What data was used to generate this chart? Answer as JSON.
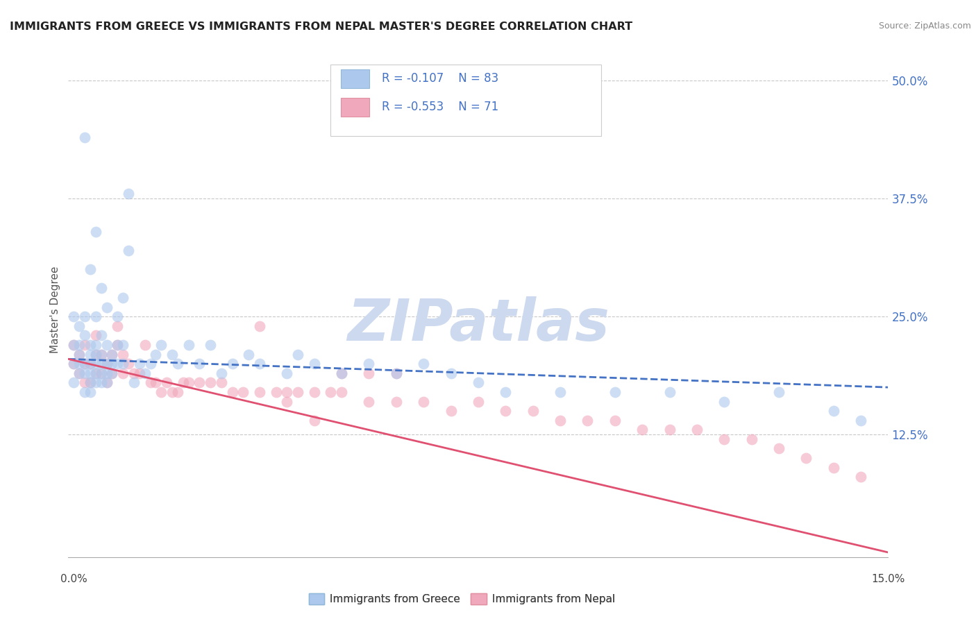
{
  "title": "IMMIGRANTS FROM GREECE VS IMMIGRANTS FROM NEPAL MASTER'S DEGREE CORRELATION CHART",
  "source_text": "Source: ZipAtlas.com",
  "xlim": [
    0.0,
    0.15
  ],
  "ylim": [
    -0.005,
    0.52
  ],
  "ylabel_ticks": [
    0.0,
    0.125,
    0.25,
    0.375,
    0.5
  ],
  "ylabel_labels": [
    "",
    "12.5%",
    "25.0%",
    "37.5%",
    "50.0%"
  ],
  "legend_R1": "R = -0.107",
  "legend_N1": "N = 83",
  "legend_R2": "R = -0.553",
  "legend_N2": "N = 71",
  "color_greece": "#adc8ed",
  "color_nepal": "#f0a8bc",
  "color_greece_line": "#4472c4",
  "color_nepal_line": "#e05070",
  "watermark": "ZIPatlas",
  "watermark_color": "#ccd9ee",
  "legend_text_color": "#4472c4",
  "greece_x": [
    0.001,
    0.001,
    0.001,
    0.001,
    0.002,
    0.002,
    0.002,
    0.002,
    0.002,
    0.003,
    0.003,
    0.003,
    0.003,
    0.003,
    0.004,
    0.004,
    0.004,
    0.004,
    0.004,
    0.004,
    0.005,
    0.005,
    0.005,
    0.005,
    0.005,
    0.005,
    0.006,
    0.006,
    0.006,
    0.006,
    0.006,
    0.007,
    0.007,
    0.007,
    0.007,
    0.008,
    0.008,
    0.008,
    0.009,
    0.009,
    0.009,
    0.01,
    0.01,
    0.011,
    0.011,
    0.012,
    0.013,
    0.014,
    0.015,
    0.016,
    0.017,
    0.019,
    0.02,
    0.022,
    0.024,
    0.026,
    0.028,
    0.03,
    0.033,
    0.035,
    0.04,
    0.042,
    0.045,
    0.05,
    0.055,
    0.06,
    0.065,
    0.07,
    0.075,
    0.08,
    0.09,
    0.1,
    0.11,
    0.12,
    0.13,
    0.14,
    0.145,
    0.003,
    0.004,
    0.005,
    0.006,
    0.007,
    0.01
  ],
  "greece_y": [
    0.22,
    0.18,
    0.2,
    0.25,
    0.19,
    0.21,
    0.24,
    0.2,
    0.22,
    0.17,
    0.2,
    0.23,
    0.19,
    0.25,
    0.18,
    0.21,
    0.19,
    0.22,
    0.17,
    0.2,
    0.19,
    0.21,
    0.18,
    0.2,
    0.22,
    0.25,
    0.18,
    0.2,
    0.19,
    0.21,
    0.23,
    0.18,
    0.2,
    0.22,
    0.19,
    0.19,
    0.21,
    0.2,
    0.22,
    0.2,
    0.25,
    0.2,
    0.22,
    0.32,
    0.38,
    0.18,
    0.2,
    0.19,
    0.2,
    0.21,
    0.22,
    0.21,
    0.2,
    0.22,
    0.2,
    0.22,
    0.19,
    0.2,
    0.21,
    0.2,
    0.19,
    0.21,
    0.2,
    0.19,
    0.2,
    0.19,
    0.2,
    0.19,
    0.18,
    0.17,
    0.17,
    0.17,
    0.17,
    0.16,
    0.17,
    0.15,
    0.14,
    0.44,
    0.3,
    0.34,
    0.28,
    0.26,
    0.27
  ],
  "nepal_x": [
    0.001,
    0.001,
    0.002,
    0.002,
    0.003,
    0.003,
    0.003,
    0.004,
    0.004,
    0.005,
    0.005,
    0.005,
    0.006,
    0.006,
    0.007,
    0.007,
    0.008,
    0.008,
    0.009,
    0.009,
    0.01,
    0.01,
    0.011,
    0.012,
    0.013,
    0.014,
    0.015,
    0.016,
    0.017,
    0.018,
    0.019,
    0.02,
    0.021,
    0.022,
    0.024,
    0.026,
    0.028,
    0.03,
    0.032,
    0.035,
    0.038,
    0.04,
    0.042,
    0.045,
    0.048,
    0.05,
    0.055,
    0.06,
    0.065,
    0.07,
    0.075,
    0.08,
    0.085,
    0.09,
    0.095,
    0.1,
    0.105,
    0.11,
    0.115,
    0.12,
    0.125,
    0.13,
    0.135,
    0.14,
    0.145,
    0.05,
    0.055,
    0.06,
    0.035,
    0.04,
    0.045
  ],
  "nepal_y": [
    0.2,
    0.22,
    0.19,
    0.21,
    0.18,
    0.2,
    0.22,
    0.18,
    0.2,
    0.19,
    0.21,
    0.23,
    0.19,
    0.21,
    0.18,
    0.2,
    0.19,
    0.21,
    0.24,
    0.22,
    0.19,
    0.21,
    0.2,
    0.19,
    0.19,
    0.22,
    0.18,
    0.18,
    0.17,
    0.18,
    0.17,
    0.17,
    0.18,
    0.18,
    0.18,
    0.18,
    0.18,
    0.17,
    0.17,
    0.17,
    0.17,
    0.17,
    0.17,
    0.17,
    0.17,
    0.17,
    0.16,
    0.16,
    0.16,
    0.15,
    0.16,
    0.15,
    0.15,
    0.14,
    0.14,
    0.14,
    0.13,
    0.13,
    0.13,
    0.12,
    0.12,
    0.11,
    0.1,
    0.09,
    0.08,
    0.19,
    0.19,
    0.19,
    0.24,
    0.16,
    0.14
  ]
}
